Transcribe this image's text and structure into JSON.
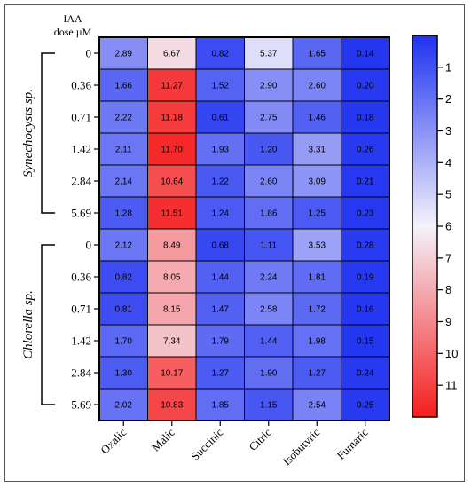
{
  "chart_data": {
    "type": "heatmap",
    "row_axis_title_line1": "IAA",
    "row_axis_title_line2": "dose µM",
    "columns": [
      "Oxalic",
      "Malic",
      "Succinic",
      "Citric",
      "Isobutyric",
      "Fumaric"
    ],
    "groups": [
      {
        "name": "Synechocysts sp.",
        "rows": [
          {
            "dose": "0",
            "values": [
              "2.89",
              "6.67",
              "0.82",
              "5.37",
              "1.65",
              "0.14"
            ]
          },
          {
            "dose": "0.36",
            "values": [
              "1.66",
              "11.27",
              "1.52",
              "2.90",
              "2.60",
              "0.20"
            ]
          },
          {
            "dose": "0.71",
            "values": [
              "2.22",
              "11.18",
              "0.61",
              "2.75",
              "1.46",
              "0.18"
            ]
          },
          {
            "dose": "1.42",
            "values": [
              "2.11",
              "11.70",
              "1.93",
              "1.20",
              "3.31",
              "0.26"
            ]
          },
          {
            "dose": "2.84",
            "values": [
              "2.14",
              "10.64",
              "1.22",
              "2.60",
              "3.09",
              "0.21"
            ]
          },
          {
            "dose": "5.69",
            "values": [
              "1.28",
              "11.51",
              "1.24",
              "1.86",
              "1.25",
              "0.23"
            ]
          }
        ]
      },
      {
        "name": "Chlorella sp.",
        "rows": [
          {
            "dose": "0",
            "values": [
              "2.12",
              "8.49",
              "0.68",
              "1.11",
              "3.53",
              "0.28"
            ]
          },
          {
            "dose": "0.36",
            "values": [
              "0.82",
              "8.05",
              "1.44",
              "2.24",
              "1.81",
              "0.19"
            ]
          },
          {
            "dose": "0.71",
            "values": [
              "0.81",
              "8.15",
              "1.47",
              "2.58",
              "1.72",
              "0.16"
            ]
          },
          {
            "dose": "1.42",
            "values": [
              "1.70",
              "7.34",
              "1.79",
              "1.44",
              "1.98",
              "0.15"
            ]
          },
          {
            "dose": "2.84",
            "values": [
              "1.30",
              "10.17",
              "1.27",
              "1.90",
              "1.27",
              "0.24"
            ]
          },
          {
            "dose": "5.69",
            "values": [
              "2.02",
              "10.83",
              "1.85",
              "1.15",
              "2.54",
              "0.25"
            ]
          }
        ]
      }
    ],
    "colorbar": {
      "min": 0,
      "max": 12,
      "ticks": [
        "1",
        "2",
        "3",
        "4",
        "5",
        "6",
        "7",
        "8",
        "9",
        "10",
        "11"
      ],
      "low_color": "#1f32f0",
      "mid_color": "#f4f2fb",
      "high_color": "#f51e1e"
    }
  }
}
